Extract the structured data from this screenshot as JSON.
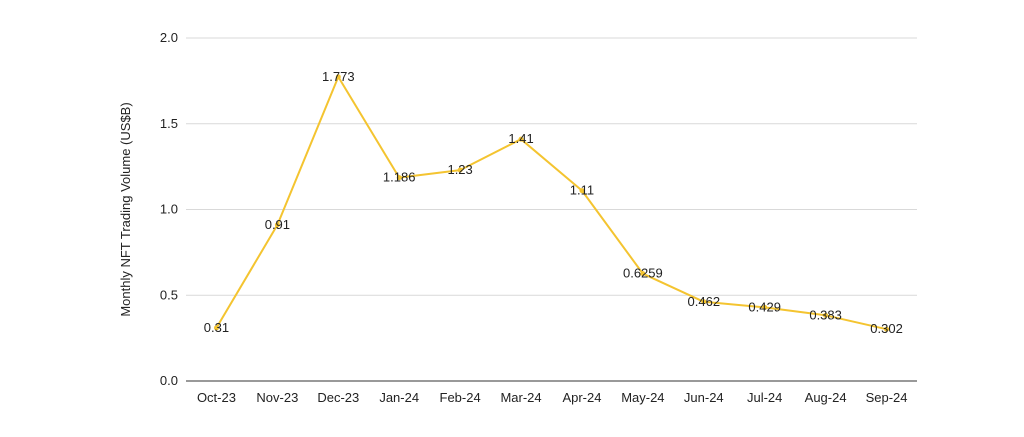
{
  "chart_data": {
    "type": "line",
    "title": "",
    "xlabel": "",
    "ylabel": "Monthly NFT Trading Volume (US$B)",
    "categories": [
      "Oct-23",
      "Nov-23",
      "Dec-23",
      "Jan-24",
      "Feb-24",
      "Mar-24",
      "Apr-24",
      "May-24",
      "Jun-24",
      "Jul-24",
      "Aug-24",
      "Sep-24"
    ],
    "series": [
      {
        "values": [
          0.31,
          0.91,
          1.773,
          1.186,
          1.23,
          1.41,
          1.11,
          0.6259,
          0.462,
          0.429,
          0.383,
          0.302
        ],
        "labels": [
          "0.31",
          "0.91",
          "1.773",
          "1.186",
          "1.23",
          "1.41",
          "1.11",
          "0.6259",
          "0.462",
          "0.429",
          "0.383",
          "0.302"
        ],
        "color": "#f4c430"
      }
    ],
    "ylim": [
      0,
      2.0
    ],
    "yticks": [
      "0.0",
      "0.5",
      "1.0",
      "1.5",
      "2.0"
    ],
    "grid": true,
    "legend": "none"
  }
}
